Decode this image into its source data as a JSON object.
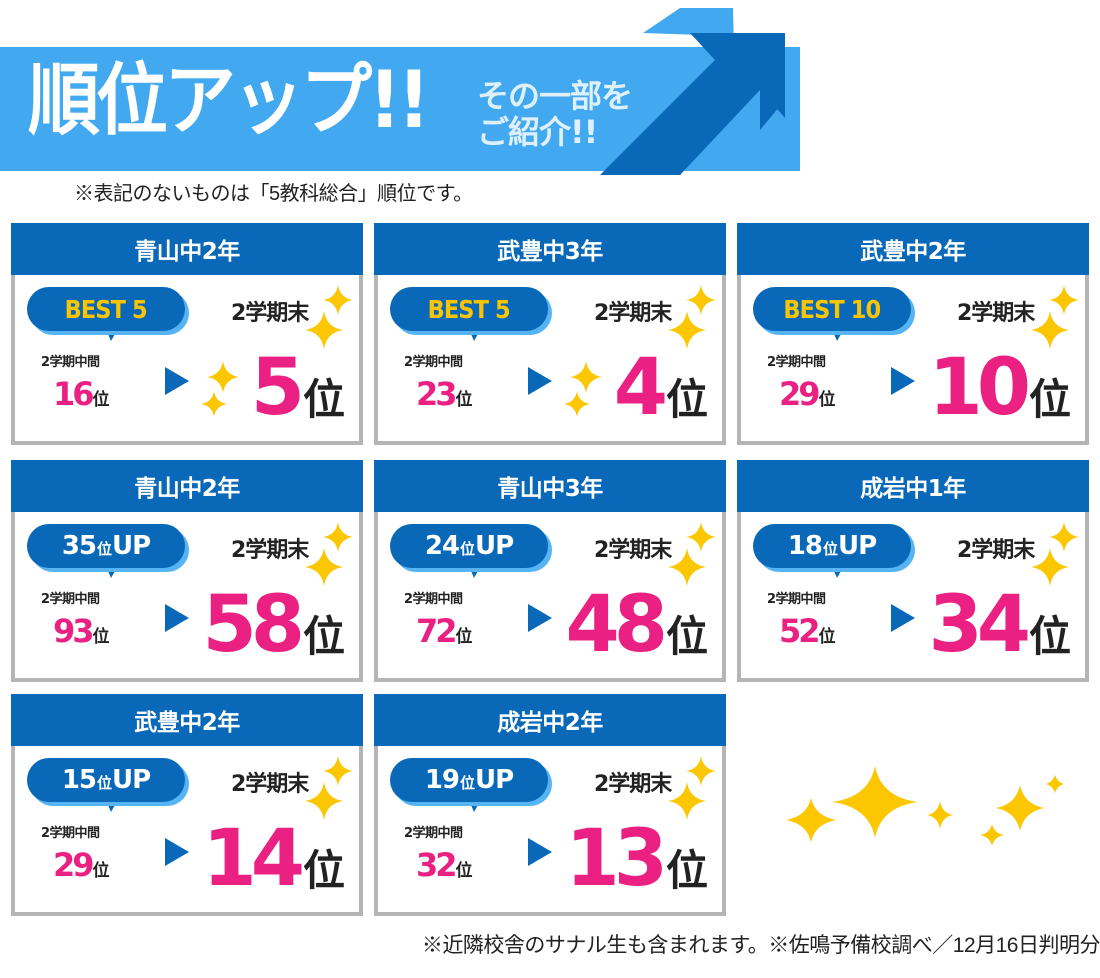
{
  "banner": {
    "title": "順位アップ!!",
    "subtitle_line1": "その一部を",
    "subtitle_line2": "ご紹介!!",
    "icon": "up-arrow-icon",
    "colors": {
      "bar": "#42a9f0",
      "arrow_dark": "#0969b8",
      "arrow_light": "#42a9f0"
    }
  },
  "note": "※表記のないものは「5教科総合」順位です。",
  "labels": {
    "mid_term": "2学期中間",
    "end_term": "2学期末",
    "rank_unit": "位",
    "up_suffix": "UP"
  },
  "colors": {
    "header_blue": "#0969b8",
    "rank_pink": "#ea2182",
    "best_yellow": "#fbc400",
    "sparkle_yellow": "#fcc600",
    "border_gray": "#b5b5b5",
    "bubble_shadow": "#56b4f5"
  },
  "cards": [
    {
      "school": "青山中2年",
      "badge_type": "best",
      "badge": "BEST 5",
      "mid_rank": "16",
      "end_rank": "5"
    },
    {
      "school": "武豊中3年",
      "badge_type": "best",
      "badge": "BEST 5",
      "mid_rank": "23",
      "end_rank": "4"
    },
    {
      "school": "武豊中2年",
      "badge_type": "best",
      "badge": "BEST 10",
      "mid_rank": "29",
      "end_rank": "10"
    },
    {
      "school": "青山中2年",
      "badge_type": "up",
      "up_count": "35",
      "mid_rank": "93",
      "end_rank": "58"
    },
    {
      "school": "青山中3年",
      "badge_type": "up",
      "up_count": "24",
      "mid_rank": "72",
      "end_rank": "48"
    },
    {
      "school": "成岩中1年",
      "badge_type": "up",
      "up_count": "18",
      "mid_rank": "52",
      "end_rank": "34"
    },
    {
      "school": "武豊中2年",
      "badge_type": "up",
      "up_count": "15",
      "mid_rank": "29",
      "end_rank": "14"
    },
    {
      "school": "成岩中2年",
      "badge_type": "up",
      "up_count": "19",
      "mid_rank": "32",
      "end_rank": "13"
    }
  ],
  "footer": "※近隣校舎のサナル生も含まれます。※佐鳴予備校調べ／12月16日判明分"
}
